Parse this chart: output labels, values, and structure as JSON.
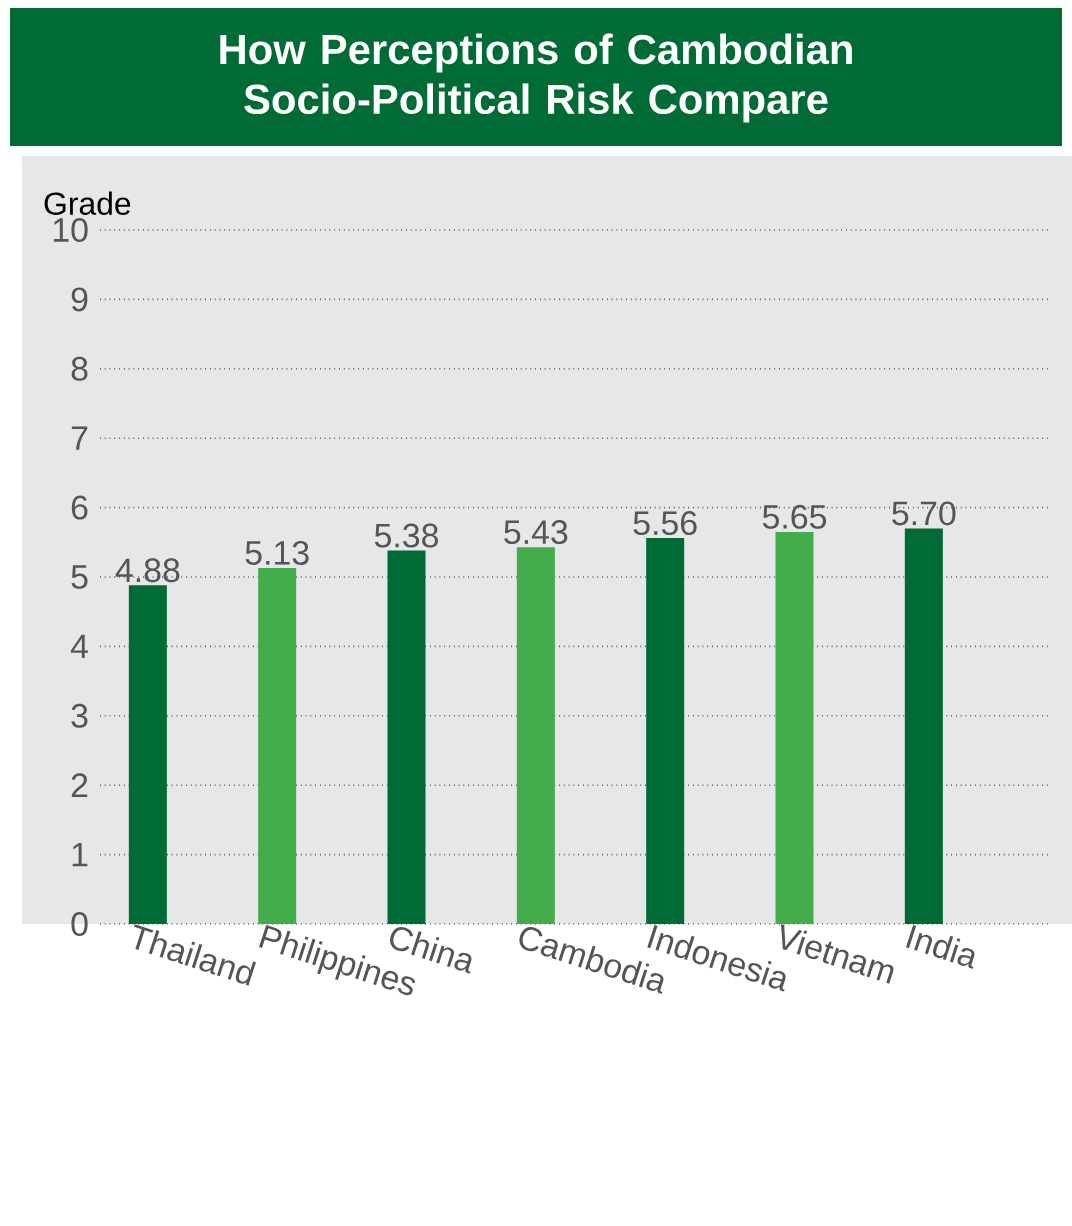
{
  "chart_data": {
    "type": "bar",
    "title": "How Perceptions of Cambodian Socio-Political Risk Compare",
    "ylabel": "Grade",
    "categories": [
      "Thailand",
      "Philippines",
      "China",
      "Cambodia",
      "Indonesia",
      "Vietnam",
      "India"
    ],
    "values": [
      4.88,
      5.13,
      5.38,
      5.43,
      5.56,
      5.65,
      5.7
    ],
    "colors": [
      "#006b35",
      "#42ad4a",
      "#006b35",
      "#42ad4a",
      "#006b35",
      "#42ad4a",
      "#006b35"
    ],
    "ylim": [
      0,
      10
    ],
    "yticks": [
      0,
      1,
      2,
      3,
      4,
      5,
      6,
      7,
      8,
      9,
      10
    ],
    "value_labels": [
      "4.88",
      "5.13",
      "5.38",
      "5.43",
      "5.56",
      "5.65",
      "5.70"
    ],
    "grid": "y"
  }
}
